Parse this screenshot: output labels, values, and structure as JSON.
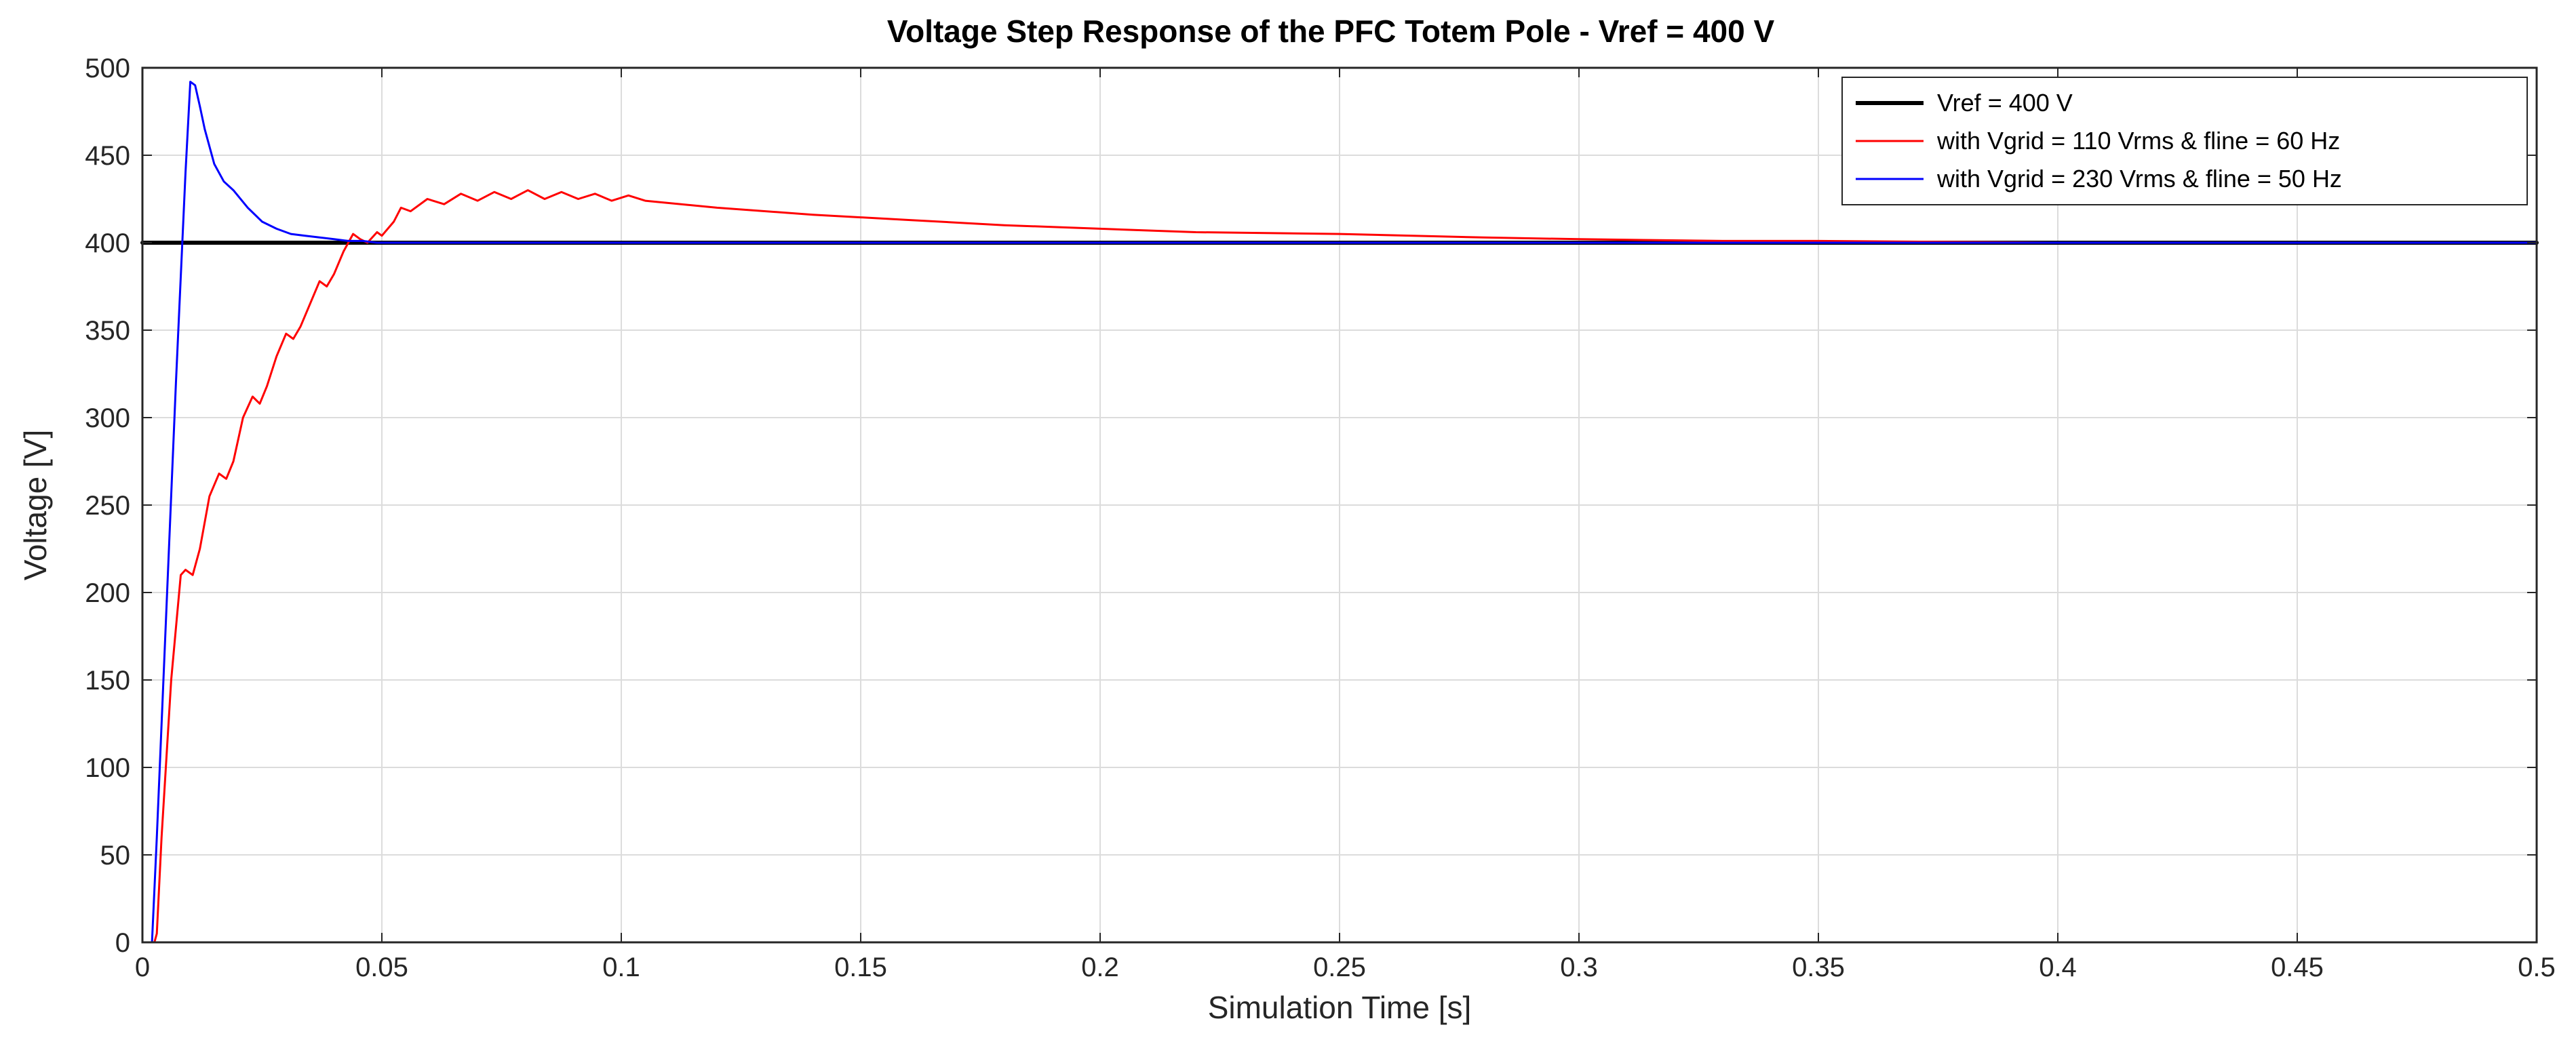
{
  "chart_data": {
    "type": "line",
    "title": "Voltage Step Response of the PFC Totem Pole - Vref = 400 V",
    "xlabel": "Simulation Time [s]",
    "ylabel": "Voltage [V]",
    "xlim": [
      0,
      0.5
    ],
    "ylim": [
      0,
      500
    ],
    "xticks": [
      0,
      0.05,
      0.1,
      0.15,
      0.2,
      0.25,
      0.3,
      0.35,
      0.4,
      0.45,
      0.5
    ],
    "xtick_labels": [
      "0",
      "0.05",
      "0.1",
      "0.15",
      "0.2",
      "0.25",
      "0.3",
      "0.35",
      "0.4",
      "0.45",
      "0.5"
    ],
    "yticks": [
      0,
      50,
      100,
      150,
      200,
      250,
      300,
      350,
      400,
      450,
      500
    ],
    "ytick_labels": [
      "0",
      "50",
      "100",
      "150",
      "200",
      "250",
      "300",
      "350",
      "400",
      "450",
      "500"
    ],
    "grid": true,
    "legend_position": "top-right",
    "series": [
      {
        "name": "Vref = 400 V",
        "color": "#000000",
        "x": [
          0,
          0.5
        ],
        "y": [
          400,
          400
        ]
      },
      {
        "name": "with Vgrid = 110 Vrms & fline = 60 Hz",
        "color": "#ff0000",
        "x": [
          0,
          0.0025,
          0.003,
          0.004,
          0.006,
          0.008,
          0.009,
          0.0105,
          0.012,
          0.014,
          0.016,
          0.0175,
          0.019,
          0.021,
          0.023,
          0.0245,
          0.026,
          0.028,
          0.03,
          0.0315,
          0.033,
          0.035,
          0.037,
          0.0385,
          0.04,
          0.042,
          0.044,
          0.0455,
          0.047,
          0.049,
          0.05,
          0.0525,
          0.054,
          0.056,
          0.0595,
          0.063,
          0.0665,
          0.07,
          0.0735,
          0.077,
          0.0805,
          0.084,
          0.0875,
          0.091,
          0.0945,
          0.098,
          0.1015,
          0.105,
          0.12,
          0.14,
          0.16,
          0.18,
          0.2,
          0.22,
          0.25,
          0.28,
          0.3,
          0.33,
          0.35,
          0.4,
          0.45,
          0.5
        ],
        "y": [
          0,
          0,
          5,
          60,
          150,
          210,
          213,
          210,
          225,
          255,
          268,
          265,
          275,
          300,
          312,
          308,
          318,
          335,
          348,
          345,
          352,
          365,
          378,
          375,
          382,
          395,
          405,
          402,
          400,
          406,
          404,
          412,
          420,
          418,
          425,
          422,
          428,
          424,
          429,
          425,
          430,
          425,
          429,
          425,
          428,
          424,
          427,
          424,
          420,
          416,
          413,
          410,
          408,
          406,
          405,
          403,
          402,
          401,
          401,
          400,
          400,
          400
        ]
      },
      {
        "name": "with Vgrid = 230 Vrms & fline = 50 Hz",
        "color": "#0000ff",
        "x": [
          0,
          0.001,
          0.002,
          0.003,
          0.005,
          0.007,
          0.009,
          0.01,
          0.011,
          0.012,
          0.013,
          0.015,
          0.017,
          0.019,
          0.022,
          0.025,
          0.028,
          0.031,
          0.034,
          0.037,
          0.04,
          0.043,
          0.046,
          0.049,
          0.052,
          0.5
        ],
        "y": [
          0,
          0,
          0,
          60,
          190,
          320,
          440,
          492,
          490,
          478,
          465,
          445,
          435,
          430,
          420,
          412,
          408,
          405,
          404,
          403,
          402,
          401,
          401,
          400,
          400,
          400
        ]
      }
    ]
  }
}
